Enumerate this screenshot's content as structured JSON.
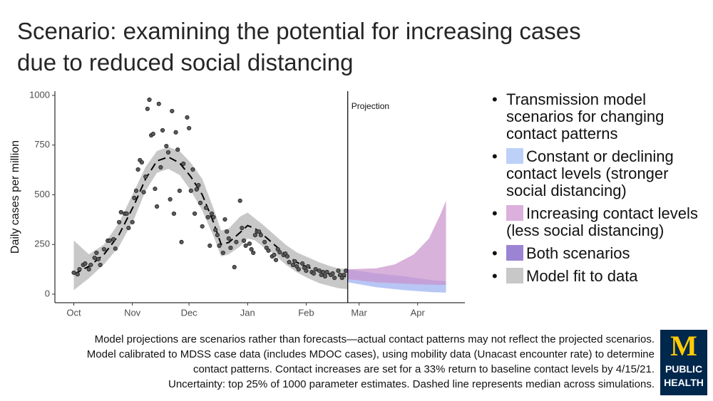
{
  "chart_data": {
    "type": "line",
    "title": "Scenario: examining the potential for increasing cases due to reduced social distancing",
    "y_label": "Daily cases per million",
    "xlim": [
      -10,
      207
    ],
    "ylim": [
      -43,
      1021
    ],
    "xticks": [
      {
        "value": 0,
        "label": "Oct"
      },
      {
        "value": 31,
        "label": "Nov"
      },
      {
        "value": 61,
        "label": "Dec"
      },
      {
        "value": 92,
        "label": "Jan"
      },
      {
        "value": 123,
        "label": "Feb"
      },
      {
        "value": 151,
        "label": "Mar"
      },
      {
        "value": 182,
        "label": "Apr"
      }
    ],
    "yticks": [
      0,
      250,
      500,
      750,
      1000
    ],
    "grid": false,
    "points": {
      "color": "#5a5a5a",
      "x": [
        0,
        2,
        3,
        5,
        6,
        8,
        9,
        11,
        12,
        13,
        14,
        16,
        18,
        19,
        21,
        22,
        24,
        25,
        27,
        28,
        29,
        31,
        32,
        33,
        34,
        35,
        36,
        37,
        38,
        39,
        40,
        41,
        42,
        43,
        44,
        45,
        46,
        47,
        49,
        50,
        51,
        52,
        53,
        54,
        55,
        56,
        57,
        58,
        60,
        61,
        62,
        63,
        64,
        65,
        66,
        67,
        68,
        70,
        71,
        72,
        73,
        74,
        75,
        76,
        77,
        79,
        80,
        81,
        82,
        83,
        85,
        86,
        88,
        89,
        90,
        91,
        93,
        94,
        95,
        96,
        97,
        98,
        99,
        101,
        102,
        103,
        105,
        106,
        107,
        108,
        109,
        111,
        112,
        113,
        114,
        116,
        117,
        118,
        119,
        121,
        122,
        123,
        124,
        126,
        127,
        128,
        130,
        131,
        132,
        133,
        134,
        136,
        137,
        138,
        140,
        141,
        142,
        143,
        144
      ],
      "y": [
        108,
        100,
        125,
        147,
        154,
        125,
        147,
        183,
        208,
        176,
        147,
        226,
        269,
        269,
        276,
        229,
        362,
        412,
        405,
        405,
        333,
        362,
        484,
        520,
        627,
        674,
        663,
        513,
        591,
        932,
        978,
        799,
        806,
        530,
        441,
        957,
        638,
        824,
        745,
        713,
        477,
        921,
        405,
        814,
        727,
        520,
        262,
        656,
        889,
        835,
        520,
        627,
        405,
        527,
        548,
        459,
        341,
        434,
        387,
        244,
        405,
        387,
        323,
        297,
        244,
        208,
        376,
        315,
        280,
        233,
        136,
        262,
        470,
        333,
        269,
        244,
        254,
        226,
        208,
        297,
        315,
        315,
        297,
        262,
        233,
        219,
        190,
        197,
        172,
        226,
        211,
        197,
        204,
        190,
        161,
        147,
        165,
        140,
        125,
        154,
        133,
        118,
        140,
        111,
        104,
        125,
        118,
        97,
        111,
        90,
        111,
        97,
        104,
        82,
        118,
        97,
        82,
        97,
        118
      ]
    },
    "fit": {
      "color": "#c8c8c8",
      "line_color": "#000000",
      "x": [
        0,
        8,
        16,
        24,
        32,
        38,
        44,
        50,
        56,
        62,
        68,
        74,
        78,
        82,
        88,
        92,
        96,
        100,
        106,
        112,
        118,
        124,
        130,
        136,
        140,
        145
      ],
      "median": [
        100,
        140,
        200,
        300,
        450,
        580,
        670,
        690,
        660,
        590,
        500,
        360,
        250,
        260,
        310,
        345,
        330,
        300,
        250,
        200,
        160,
        135,
        115,
        100,
        92,
        88
      ],
      "lower": [
        20,
        80,
        150,
        240,
        380,
        520,
        610,
        630,
        600,
        520,
        420,
        290,
        190,
        200,
        240,
        280,
        270,
        240,
        200,
        150,
        110,
        80,
        55,
        40,
        30,
        25
      ],
      "upper": [
        270,
        200,
        250,
        360,
        520,
        640,
        720,
        740,
        720,
        660,
        580,
        430,
        320,
        330,
        390,
        410,
        380,
        350,
        300,
        250,
        210,
        185,
        160,
        140,
        130,
        125
      ]
    },
    "scenarios": [
      {
        "color": "#9fb3f2",
        "x": [
          145,
          160,
          175,
          190,
          197
        ],
        "lower": [
          60,
          35,
          20,
          10,
          8
        ],
        "upper": [
          125,
          105,
          90,
          70,
          65
        ]
      },
      {
        "color": "#c792cc",
        "x": [
          145,
          160,
          170,
          180,
          188,
          194,
          197
        ],
        "lower": [
          75,
          60,
          55,
          50,
          48,
          47,
          47
        ],
        "upper": [
          125,
          130,
          150,
          200,
          280,
          400,
          470
        ]
      }
    ],
    "projection": {
      "x": 145,
      "label": "Projection"
    },
    "legend": {
      "title": "Transmission model scenarios for changing contact patterns",
      "items": [
        {
          "label": "Constant or declining contact levels (stronger social distancing)",
          "color": "#bdd1f8"
        },
        {
          "label": "Increasing contact levels (less social distancing)",
          "color": "#dcb0dc"
        },
        {
          "label": "Both scenarios",
          "color": "#9c84d4"
        },
        {
          "label": "Model fit to data",
          "color": "#c8c8c8"
        }
      ]
    }
  },
  "notes": [
    "Model projections are scenarios rather than forecasts—actual contact patterns may not reflect the projected scenarios.",
    "Model calibrated to MDSS case data (includes MDOC cases), using mobility data (Unacast encounter rate) to determine",
    "contact patterns. Contact increases are set for a 33% return to baseline contact levels by 4/15/21.",
    "Uncertainty: top 25% of 1000 parameter estimates. Dashed line represents median across simulations."
  ],
  "logo": {
    "mark": "M",
    "text": [
      "PUBLIC",
      "HEALTH"
    ]
  }
}
